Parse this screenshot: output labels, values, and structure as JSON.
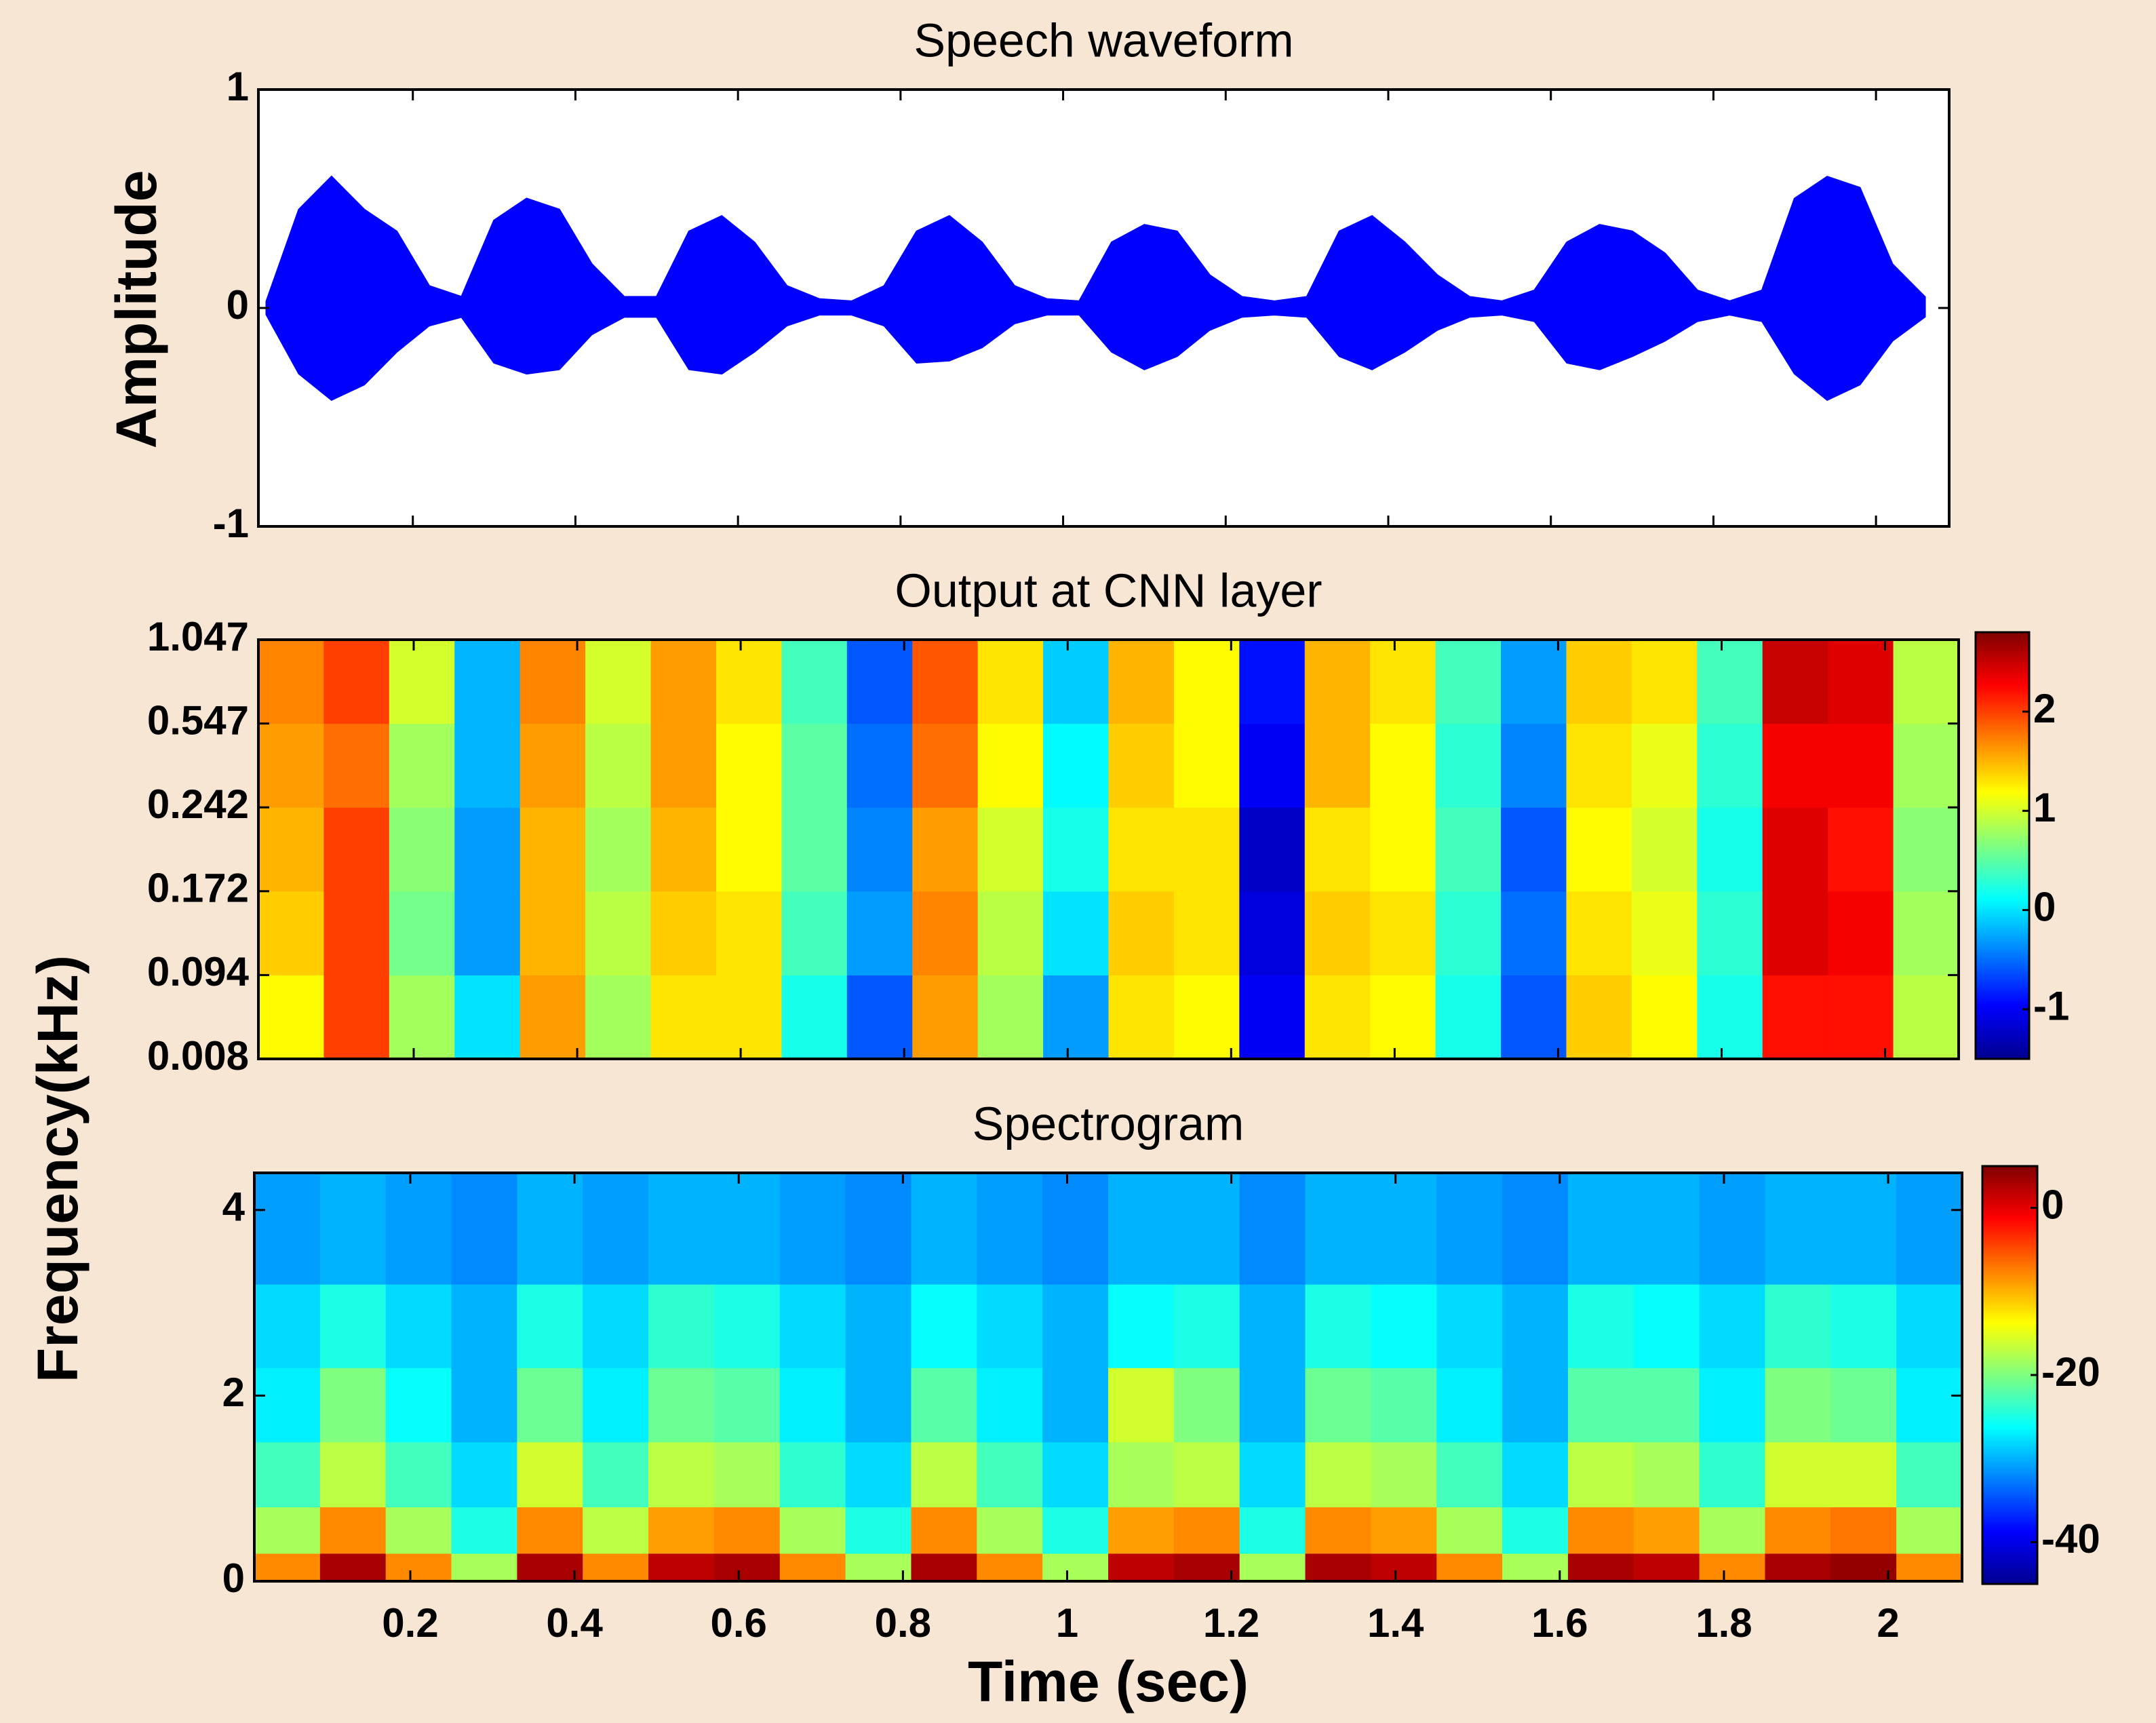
{
  "chart_data": [
    {
      "type": "band",
      "title": "Speech waveform",
      "ylabel": "Amplitude",
      "color": "#0000ff",
      "xlim": [
        0.01,
        2.09
      ],
      "ylim": [
        -1,
        1
      ],
      "yticks": [
        -1,
        0,
        1
      ],
      "x": [
        0.02,
        0.06,
        0.1,
        0.14,
        0.18,
        0.22,
        0.26,
        0.3,
        0.34,
        0.38,
        0.42,
        0.46,
        0.5,
        0.54,
        0.58,
        0.62,
        0.66,
        0.7,
        0.74,
        0.78,
        0.82,
        0.86,
        0.9,
        0.94,
        0.98,
        1.02,
        1.06,
        1.1,
        1.14,
        1.18,
        1.22,
        1.26,
        1.3,
        1.34,
        1.38,
        1.42,
        1.46,
        1.5,
        1.54,
        1.58,
        1.62,
        1.66,
        1.7,
        1.74,
        1.78,
        1.82,
        1.86,
        1.9,
        1.94,
        1.98,
        2.02,
        2.06
      ],
      "upper": [
        0.03,
        0.45,
        0.6,
        0.45,
        0.35,
        0.1,
        0.05,
        0.4,
        0.5,
        0.45,
        0.2,
        0.05,
        0.05,
        0.35,
        0.42,
        0.3,
        0.1,
        0.04,
        0.03,
        0.1,
        0.35,
        0.42,
        0.3,
        0.1,
        0.04,
        0.03,
        0.3,
        0.38,
        0.35,
        0.15,
        0.05,
        0.03,
        0.05,
        0.35,
        0.42,
        0.3,
        0.15,
        0.05,
        0.03,
        0.08,
        0.3,
        0.38,
        0.35,
        0.25,
        0.08,
        0.03,
        0.08,
        0.5,
        0.6,
        0.55,
        0.2,
        0.05
      ],
      "lower": [
        -0.03,
        -0.3,
        -0.42,
        -0.35,
        -0.2,
        -0.08,
        -0.04,
        -0.25,
        -0.3,
        -0.28,
        -0.12,
        -0.04,
        -0.04,
        -0.28,
        -0.3,
        -0.2,
        -0.08,
        -0.03,
        -0.03,
        -0.08,
        -0.25,
        -0.24,
        -0.18,
        -0.07,
        -0.03,
        -0.03,
        -0.2,
        -0.28,
        -0.22,
        -0.1,
        -0.04,
        -0.03,
        -0.04,
        -0.22,
        -0.28,
        -0.2,
        -0.1,
        -0.04,
        -0.03,
        -0.06,
        -0.25,
        -0.28,
        -0.22,
        -0.15,
        -0.06,
        -0.03,
        -0.06,
        -0.3,
        -0.42,
        -0.35,
        -0.15,
        -0.04
      ]
    },
    {
      "type": "heatmap",
      "title": "Output at CNN layer",
      "colormap": "jet",
      "xlim": [
        0.01,
        2.09
      ],
      "ylim": [
        0,
        5
      ],
      "yticks": [
        {
          "value": 0,
          "label": "0.008"
        },
        {
          "value": 1,
          "label": "0.094"
        },
        {
          "value": 2,
          "label": "0.172"
        },
        {
          "value": 3,
          "label": "0.242"
        },
        {
          "value": 4,
          "label": "0.547"
        },
        {
          "value": 5,
          "label": "1.047"
        }
      ],
      "clim": [
        -1.5,
        2.8
      ],
      "cticks": [
        -1,
        0,
        1,
        2
      ],
      "x_edges": [
        0.01,
        0.09,
        0.17,
        0.25,
        0.33,
        0.41,
        0.49,
        0.57,
        0.65,
        0.73,
        0.81,
        0.89,
        0.97,
        1.05,
        1.13,
        1.21,
        1.29,
        1.37,
        1.45,
        1.53,
        1.61,
        1.69,
        1.77,
        1.85,
        1.93,
        2.01,
        2.09
      ],
      "y_edges": [
        0,
        1,
        2,
        3,
        4,
        5
      ],
      "values": [
        [
          1.2,
          1.4,
          1.5,
          1.6,
          1.7
        ],
        [
          2,
          2,
          2,
          1.8,
          2
        ],
        [
          0.8,
          0.6,
          0.7,
          0.8,
          1
        ],
        [
          0,
          -0.3,
          -0.3,
          -0.2,
          -0.2
        ],
        [
          1.6,
          1.5,
          1.5,
          1.6,
          1.7
        ],
        [
          0.8,
          0.9,
          0.8,
          0.9,
          1.0
        ],
        [
          1.3,
          1.4,
          1.5,
          1.6,
          1.6
        ],
        [
          1.3,
          1.3,
          1.2,
          1.2,
          1.3
        ],
        [
          0.2,
          0.4,
          0.5,
          0.5,
          0.4
        ],
        [
          -0.6,
          -0.3,
          -0.4,
          -0.5,
          -0.6
        ],
        [
          1.6,
          1.7,
          1.6,
          1.8,
          1.9
        ],
        [
          0.8,
          0.9,
          1,
          1.2,
          1.3
        ],
        [
          -0.3,
          0,
          0.2,
          0.1,
          -0.1
        ],
        [
          1.3,
          1.4,
          1.3,
          1.4,
          1.5
        ],
        [
          1.2,
          1.3,
          1.3,
          1.2,
          1.2
        ],
        [
          -1,
          -1.1,
          -1.2,
          -1,
          -0.9
        ],
        [
          1.3,
          1.4,
          1.3,
          1.5,
          1.5
        ],
        [
          1.2,
          1.3,
          1.2,
          1.2,
          1.3
        ],
        [
          0.2,
          0.3,
          0.4,
          0.3,
          0.4
        ],
        [
          -0.6,
          -0.5,
          -0.6,
          -0.4,
          -0.3
        ],
        [
          1.4,
          1.3,
          1.2,
          1.3,
          1.4
        ],
        [
          1.2,
          1.1,
          1.0,
          1.1,
          1.3
        ],
        [
          0.2,
          0.3,
          0.2,
          0.3,
          0.4
        ],
        [
          2.2,
          2.4,
          2.4,
          2.3,
          2.5
        ],
        [
          2.2,
          2.3,
          2.2,
          2.3,
          2.4
        ],
        [
          0.9,
          0.8,
          0.7,
          0.8,
          0.9
        ]
      ]
    },
    {
      "type": "heatmap",
      "title": "Spectrogram",
      "colormap": "jet",
      "xlabel": "Time (sec)",
      "ylabel": "Frequency(kHz)",
      "xlim": [
        0.01,
        2.09
      ],
      "xticks": [
        0.2,
        0.4,
        0.6,
        0.8,
        1,
        1.2,
        1.4,
        1.6,
        1.8,
        2
      ],
      "ylim": [
        0,
        4.4
      ],
      "yticks": [
        0,
        2,
        4
      ],
      "clim": [
        -45,
        5
      ],
      "cticks": [
        -40,
        -20,
        0
      ],
      "x_edges": [
        0.01,
        0.09,
        0.17,
        0.25,
        0.33,
        0.41,
        0.49,
        0.57,
        0.65,
        0.73,
        0.81,
        0.89,
        0.97,
        1.05,
        1.13,
        1.21,
        1.29,
        1.37,
        1.45,
        1.53,
        1.61,
        1.69,
        1.77,
        1.85,
        1.93,
        2.01,
        2.09
      ],
      "y_edges": [
        0,
        0.3,
        0.8,
        1.5,
        2.3,
        3.2,
        4.4
      ],
      "values": [
        [
          -8,
          -18,
          -23,
          -27,
          -28,
          -31
        ],
        [
          3,
          -8,
          -17,
          -20,
          -25,
          -30
        ],
        [
          -8,
          -18,
          -23,
          -26,
          -28,
          -31
        ],
        [
          -18,
          -25,
          -28,
          -30,
          -30,
          -32
        ],
        [
          3,
          -8,
          -16,
          -21,
          -25,
          -30
        ],
        [
          -8,
          -17,
          -23,
          -27,
          -28,
          -31
        ],
        [
          2,
          -9,
          -17,
          -21,
          -24,
          -30
        ],
        [
          3,
          -8,
          -18,
          -22,
          -25,
          -30
        ],
        [
          -8,
          -18,
          -24,
          -27,
          -28,
          -31
        ],
        [
          -18,
          -25,
          -28,
          -30,
          -30,
          -32
        ],
        [
          3,
          -8,
          -17,
          -22,
          -26,
          -30
        ],
        [
          -8,
          -18,
          -23,
          -27,
          -28,
          -31
        ],
        [
          -18,
          -25,
          -28,
          -30,
          -30,
          -32
        ],
        [
          2,
          -9,
          -18,
          -16,
          -26,
          -30
        ],
        [
          3,
          -8,
          -17,
          -20,
          -25,
          -30
        ],
        [
          -18,
          -25,
          -28,
          -30,
          -30,
          -32
        ],
        [
          3,
          -8,
          -17,
          -21,
          -25,
          -30
        ],
        [
          2,
          -9,
          -18,
          -22,
          -26,
          -30
        ],
        [
          -8,
          -18,
          -23,
          -27,
          -28,
          -31
        ],
        [
          -18,
          -25,
          -28,
          -30,
          -30,
          -32
        ],
        [
          3,
          -8,
          -17,
          -22,
          -25,
          -30
        ],
        [
          2,
          -9,
          -18,
          -22,
          -26,
          -30
        ],
        [
          -8,
          -18,
          -24,
          -27,
          -28,
          -31
        ],
        [
          3,
          -8,
          -16,
          -20,
          -24,
          -30
        ],
        [
          4,
          -7,
          -16,
          -21,
          -25,
          -30
        ],
        [
          -8,
          -18,
          -23,
          -27,
          -28,
          -31
        ]
      ]
    }
  ]
}
